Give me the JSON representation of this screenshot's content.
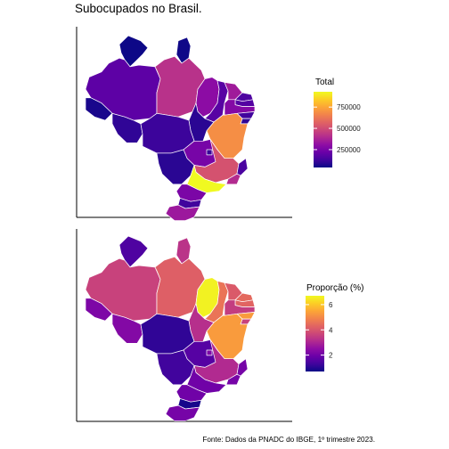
{
  "title": "Subocupados no Brasil.",
  "caption": "Fonte: Dados da PNADC do IBGE, 1º trimestre 2023.",
  "chart_data": [
    {
      "type": "heatmap",
      "map": "choropleth-brazil-states",
      "legend_title": "Total",
      "legend_ticks": [
        250000,
        500000,
        750000
      ],
      "legend_tick_labels": [
        "250000",
        "500000",
        "750000"
      ],
      "scale": "plasma",
      "range": [
        40000,
        930000
      ],
      "axes_shown": [
        "left",
        "bottom"
      ],
      "grid": false,
      "legend_placement": "right",
      "values": {
        "AC": 60000,
        "AM": 190000,
        "RR": 40000,
        "PA": 420000,
        "AP": 45000,
        "RO": 100000,
        "TO": 90000,
        "MA": 300000,
        "PI": 180000,
        "CE": 350000,
        "RN": 160000,
        "PB": 170000,
        "PE": 280000,
        "AL": 130000,
        "SE": 100000,
        "BA": 690000,
        "MT": 120000,
        "MS": 90000,
        "GO": 250000,
        "DF": 110000,
        "MG": 520000,
        "ES": 150000,
        "RJ": 400000,
        "SP": 930000,
        "PR": 260000,
        "SC": 130000,
        "RS": 340000
      }
    },
    {
      "type": "heatmap",
      "map": "choropleth-brazil-states",
      "legend_title": "Proporção (%)",
      "legend_ticks": [
        2,
        4,
        6
      ],
      "legend_tick_labels": [
        "2",
        "4",
        "6"
      ],
      "scale": "plasma",
      "range": [
        0.7,
        6.7
      ],
      "axes_shown": [
        "left",
        "bottom"
      ],
      "grid": false,
      "legend_placement": "right",
      "values": {
        "AC": 2.2,
        "AM": 3.6,
        "RR": 1.5,
        "PA": 4.2,
        "AP": 3.3,
        "RO": 2.3,
        "TO": 3.2,
        "MA": 6.6,
        "PI": 4.6,
        "CE": 4.1,
        "RN": 4.4,
        "PB": 4.3,
        "PE": 3.5,
        "AL": 5.3,
        "SE": 3.6,
        "BA": 5.3,
        "MT": 1.1,
        "MS": 1.3,
        "GO": 1.6,
        "DF": 2.2,
        "MG": 3.1,
        "ES": 2.1,
        "RJ": 2.1,
        "SP": 2.0,
        "PR": 2.0,
        "SC": 0.8,
        "RS": 2.1
      }
    }
  ]
}
